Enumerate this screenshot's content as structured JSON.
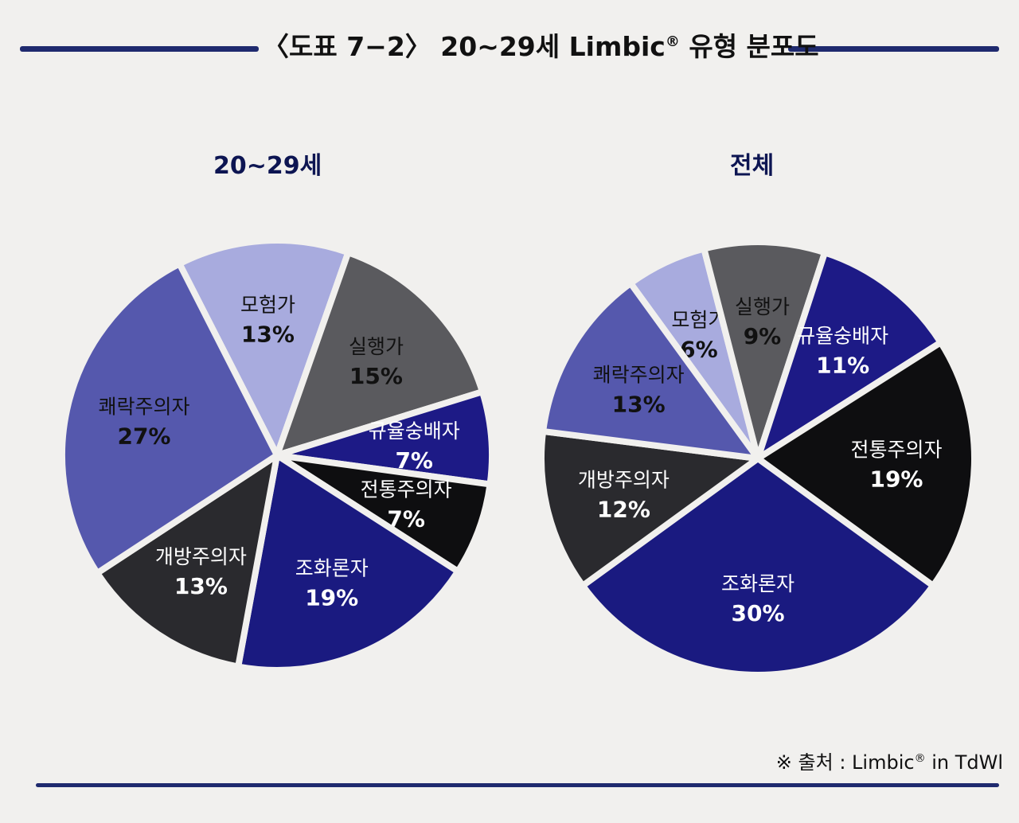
{
  "header": {
    "title": "〈도표 7−2〉 20∼29세 Limbic",
    "title_mark": "®",
    "title_suffix": " 유형 분포도"
  },
  "chart_data": [
    {
      "type": "pie",
      "title": "20∼29세",
      "slices": [
        {
          "label": "모험가",
          "value": 13,
          "display": "13%",
          "color": "#a8abde",
          "text_color": "#111111"
        },
        {
          "label": "실행가",
          "value": 15,
          "display": "15%",
          "color": "#5a5a5e",
          "text_color": "#111111"
        },
        {
          "label": "규율숭배자",
          "value": 7,
          "display": "7%",
          "color": "#1d1a86",
          "text_color": "#ffffff"
        },
        {
          "label": "전통주의자",
          "value": 7,
          "display": "7%",
          "color": "#0e0e10",
          "text_color": "#ffffff"
        },
        {
          "label": "조화론자",
          "value": 19,
          "display": "19%",
          "color": "#1a1a80",
          "text_color": "#ffffff"
        },
        {
          "label": "개방주의자",
          "value": 13,
          "display": "13%",
          "color": "#2a2a2e",
          "text_color": "#ffffff"
        },
        {
          "label": "쾌락주의자",
          "value": 27,
          "display": "27%",
          "color": "#5558ad",
          "text_color": "#111111"
        }
      ]
    },
    {
      "type": "pie",
      "title": "전체",
      "slices": [
        {
          "label": "모험가",
          "value": 6,
          "display": "6%",
          "color": "#a8abde",
          "text_color": "#111111"
        },
        {
          "label": "실행가",
          "value": 9,
          "display": "9%",
          "color": "#5a5a5e",
          "text_color": "#111111"
        },
        {
          "label": "규율숭배자",
          "value": 11,
          "display": "11%",
          "color": "#1d1a86",
          "text_color": "#ffffff"
        },
        {
          "label": "전통주의자",
          "value": 19,
          "display": "19%",
          "color": "#0e0e10",
          "text_color": "#ffffff"
        },
        {
          "label": "조화론자",
          "value": 30,
          "display": "30%",
          "color": "#1a1a80",
          "text_color": "#ffffff"
        },
        {
          "label": "개방주의자",
          "value": 12,
          "display": "12%",
          "color": "#2a2a2e",
          "text_color": "#ffffff"
        },
        {
          "label": "쾌락주의자",
          "value": 13,
          "display": "13%",
          "color": "#5558ad",
          "text_color": "#111111"
        }
      ]
    }
  ],
  "footer": {
    "source": "※ 출처 : Limbic",
    "source_mark": "®",
    "source_suffix": " in TdWl"
  }
}
